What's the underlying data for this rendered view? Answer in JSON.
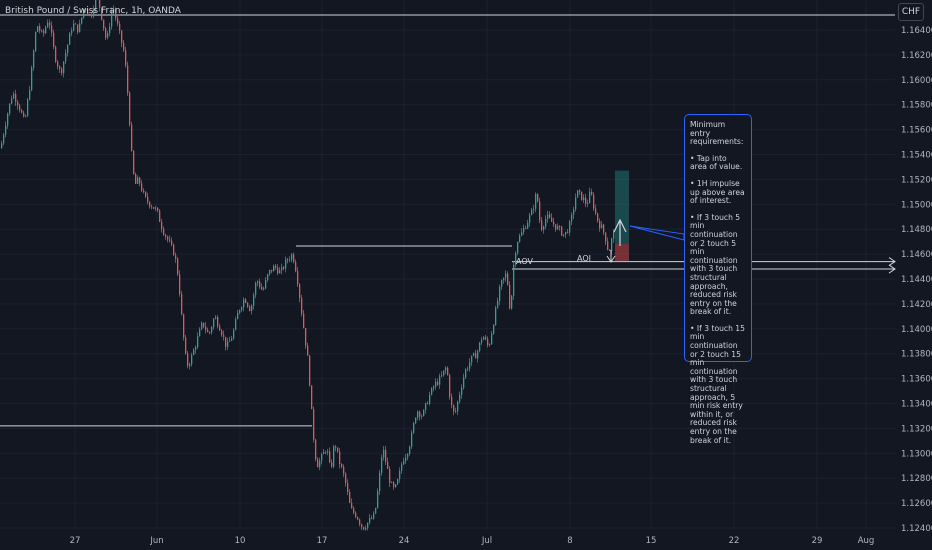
{
  "header": {
    "title": "British Pound / Swiss Franc, 1h, OANDA",
    "currency_badge": "CHF"
  },
  "annotation": {
    "lines": [
      "Minimum entry requirements:",
      "• Tap into area of value.",
      "• 1H impulse up above area of interest.",
      "• If 3 touch 5 min continuation or 2 touch 5 min continuation with 3 touch structural approach, reduced risk entry on the break of it.",
      "• If 3 touch 15 min continuation or 2 touch 15 min continuation with 3 touch structural approach, 5 min risk entry within it, or reduced risk entry on the break of it."
    ]
  },
  "zone_labels": {
    "aov": "AOV",
    "aoi": "AOI"
  },
  "colors": {
    "background": "#131722",
    "up": "#26a69a",
    "down": "#ef5350",
    "grid": "#1c2030",
    "accent": "#2962ff"
  },
  "chart_data": {
    "type": "candlestick",
    "symbol": "British Pound / Swiss Franc",
    "interval": "1h",
    "source": "OANDA",
    "ylim": [
      1.124,
      1.166
    ],
    "y_ticks": [
      "1.16400",
      "1.16200",
      "1.16000",
      "1.15800",
      "1.15600",
      "1.15400",
      "1.15200",
      "1.15000",
      "1.14800",
      "1.14600",
      "1.14400",
      "1.14200",
      "1.14000",
      "1.13800",
      "1.13600",
      "1.13400",
      "1.13200",
      "1.13000",
      "1.12800",
      "1.12600",
      "1.12400"
    ],
    "x_ticks": [
      "27",
      "Jun",
      "10",
      "17",
      "24",
      "Jul",
      "8",
      "15",
      "22",
      "29",
      "Aug"
    ],
    "price_path": [
      [
        0,
        1.1545
      ],
      [
        6,
        1.157
      ],
      [
        12,
        1.159
      ],
      [
        18,
        1.158
      ],
      [
        24,
        1.1565
      ],
      [
        30,
        1.16
      ],
      [
        36,
        1.1645
      ],
      [
        42,
        1.1635
      ],
      [
        48,
        1.165
      ],
      [
        54,
        1.162
      ],
      [
        60,
        1.1605
      ],
      [
        66,
        1.1625
      ],
      [
        72,
        1.1645
      ],
      [
        78,
        1.164
      ],
      [
        84,
        1.166
      ],
      [
        90,
        1.165
      ],
      [
        96,
        1.167
      ],
      [
        100,
        1.1655
      ],
      [
        106,
        1.163
      ],
      [
        112,
        1.166
      ],
      [
        118,
        1.164
      ],
      [
        124,
        1.162
      ],
      [
        128,
        1.158
      ],
      [
        131,
        1.154
      ],
      [
        134,
        1.1515
      ],
      [
        138,
        1.152
      ],
      [
        144,
        1.1505
      ],
      [
        150,
        1.15
      ],
      [
        156,
        1.1495
      ],
      [
        162,
        1.148
      ],
      [
        168,
        1.147
      ],
      [
        174,
        1.146
      ],
      [
        178,
        1.144
      ],
      [
        182,
        1.14
      ],
      [
        186,
        1.137
      ],
      [
        190,
        1.1375
      ],
      [
        196,
        1.139
      ],
      [
        202,
        1.1405
      ],
      [
        208,
        1.1395
      ],
      [
        214,
        1.141
      ],
      [
        220,
        1.14
      ],
      [
        226,
        1.1385
      ],
      [
        232,
        1.1395
      ],
      [
        238,
        1.1415
      ],
      [
        244,
        1.1425
      ],
      [
        250,
        1.1415
      ],
      [
        256,
        1.144
      ],
      [
        262,
        1.143
      ],
      [
        268,
        1.1445
      ],
      [
        274,
        1.145
      ],
      [
        280,
        1.1445
      ],
      [
        286,
        1.1455
      ],
      [
        292,
        1.146
      ],
      [
        296,
        1.1445
      ],
      [
        300,
        1.142
      ],
      [
        304,
        1.1395
      ],
      [
        308,
        1.137
      ],
      [
        312,
        1.132
      ],
      [
        316,
        1.129
      ],
      [
        320,
        1.1295
      ],
      [
        326,
        1.1305
      ],
      [
        330,
        1.1285
      ],
      [
        334,
        1.131
      ],
      [
        338,
        1.1295
      ],
      [
        344,
        1.128
      ],
      [
        350,
        1.1255
      ],
      [
        356,
        1.125
      ],
      [
        362,
        1.124
      ],
      [
        368,
        1.1245
      ],
      [
        374,
        1.125
      ],
      [
        378,
        1.1275
      ],
      [
        382,
        1.1305
      ],
      [
        386,
        1.129
      ],
      [
        390,
        1.1275
      ],
      [
        394,
        1.127
      ],
      [
        398,
        1.128
      ],
      [
        402,
        1.1295
      ],
      [
        406,
        1.13
      ],
      [
        410,
        1.131
      ],
      [
        416,
        1.1335
      ],
      [
        422,
        1.133
      ],
      [
        428,
        1.1345
      ],
      [
        434,
        1.1355
      ],
      [
        440,
        1.136
      ],
      [
        446,
        1.137
      ],
      [
        450,
        1.134
      ],
      [
        454,
        1.133
      ],
      [
        458,
        1.1345
      ],
      [
        464,
        1.1365
      ],
      [
        470,
        1.1375
      ],
      [
        476,
        1.138
      ],
      [
        482,
        1.1395
      ],
      [
        488,
        1.1385
      ],
      [
        494,
        1.141
      ],
      [
        500,
        1.1435
      ],
      [
        506,
        1.1445
      ],
      [
        510,
        1.141
      ],
      [
        512,
        1.1445
      ],
      [
        516,
        1.147
      ],
      [
        520,
        1.1475
      ],
      [
        526,
        1.1485
      ],
      [
        532,
        1.1495
      ],
      [
        536,
        1.151
      ],
      [
        540,
        1.148
      ],
      [
        546,
        1.149
      ],
      [
        552,
        1.1485
      ],
      [
        558,
        1.148
      ],
      [
        564,
        1.1475
      ],
      [
        570,
        1.1485
      ],
      [
        576,
        1.151
      ],
      [
        582,
        1.1505
      ],
      [
        586,
        1.15
      ],
      [
        590,
        1.151
      ],
      [
        594,
        1.1495
      ],
      [
        598,
        1.1485
      ],
      [
        602,
        1.148
      ],
      [
        606,
        1.147
      ],
      [
        608,
        1.146
      ],
      [
        612,
        1.1475
      ],
      [
        616,
        1.148
      ]
    ],
    "horizontal_levels": [
      {
        "price": 1.1652,
        "x_from_day": 0,
        "x_to_day": 895
      },
      {
        "price": 1.14665,
        "x_from_day": 296,
        "x_to_day": 512
      },
      {
        "price": 1.1454,
        "x_from_day": 512,
        "x_to_day": 895
      },
      {
        "price": 1.1448,
        "x_from_day": 512,
        "x_to_day": 895
      },
      {
        "price": 1.1322,
        "x_from_day": 0,
        "x_to_day": 312
      }
    ],
    "long_position": {
      "entry": 1.1468,
      "target": 1.1527,
      "stop": 1.1454
    }
  }
}
